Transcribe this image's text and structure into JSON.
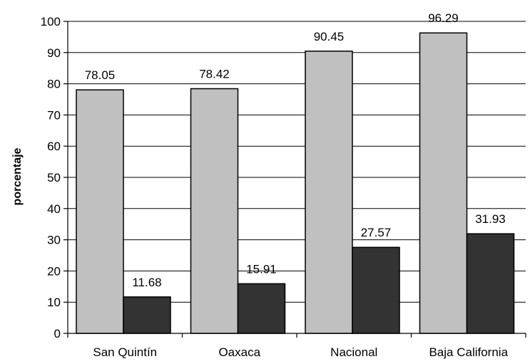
{
  "chart_data": {
    "type": "bar",
    "categories": [
      "San Quintín",
      "Oaxaca",
      "Nacional",
      "Baja California"
    ],
    "series": [
      {
        "values": [
          78.05,
          78.42,
          90.45,
          96.29
        ],
        "color": "#c0c0c0"
      },
      {
        "values": [
          11.68,
          15.91,
          27.57,
          31.93
        ],
        "color": "#333333"
      }
    ],
    "data_labels": [
      [
        "78.05",
        "78.42",
        "90.45",
        "96.29"
      ],
      [
        "11.68",
        "15.91",
        "27.57",
        "31.93"
      ]
    ],
    "title": "",
    "xlabel": "",
    "ylabel": "porcentaje",
    "ylim": [
      0,
      100
    ],
    "yticks": [
      0,
      10,
      20,
      30,
      40,
      50,
      60,
      70,
      80,
      90,
      100
    ],
    "ytick_labels": [
      "0",
      "10",
      "20",
      "30",
      "40",
      "50",
      "60",
      "70",
      "80",
      "90",
      "100"
    ],
    "grid": true,
    "legend": "none"
  }
}
